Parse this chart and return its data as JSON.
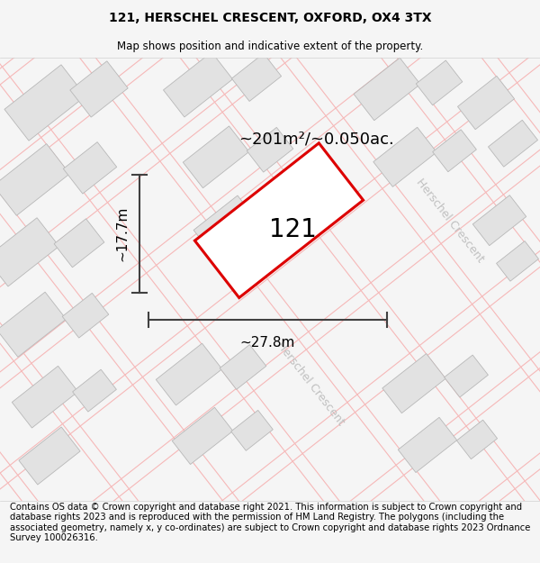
{
  "title": "121, HERSCHEL CRESCENT, OXFORD, OX4 3TX",
  "subtitle": "Map shows position and indicative extent of the property.",
  "footer": "Contains OS data © Crown copyright and database right 2021. This information is subject to Crown copyright and database rights 2023 and is reproduced with the permission of HM Land Registry. The polygons (including the associated geometry, namely x, y co-ordinates) are subject to Crown copyright and database rights 2023 Ordnance Survey 100026316.",
  "area_label": "~201m²/~0.050ac.",
  "width_label": "~27.8m",
  "height_label": "~17.7m",
  "plot_number": "121",
  "bg_color": "#f5f5f5",
  "map_bg": "#ffffff",
  "building_fill": "#e2e2e2",
  "building_edge": "#b8b8b8",
  "road_line_color": "#f5b8b8",
  "plot_edge_color": "#dd0000",
  "plot_fill": "#ffffff",
  "dim_color": "#404040",
  "road_label_color": "#c0c0c0",
  "road_label": "Herschel Crescent",
  "title_fontsize": 10,
  "subtitle_fontsize": 8.5,
  "footer_fontsize": 7.2,
  "map_title_fontsize": 13,
  "plot_label_fontsize": 20
}
